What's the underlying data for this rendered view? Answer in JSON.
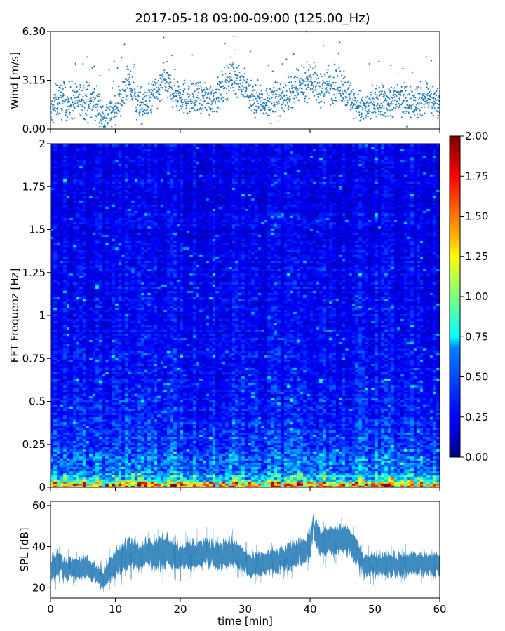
{
  "figure": {
    "title": "2017-05-18 09:00-09:00 (125.00_Hz)",
    "xlabel": "time [min]"
  },
  "chart_data": [
    {
      "type": "scatter",
      "name": "wind",
      "ylabel": "Wind [m/s]",
      "xlim": [
        0,
        60
      ],
      "ylim": [
        0,
        6.3
      ],
      "yticks": [
        0.0,
        3.15,
        6.3
      ],
      "ytick_labels": [
        "0.00",
        "3.15",
        "6.30"
      ],
      "xticks": [
        0,
        10,
        20,
        30,
        40,
        50,
        60
      ],
      "color": "#1f77b4",
      "trend": {
        "x": [
          0,
          1,
          3,
          5,
          7,
          8,
          9,
          10,
          11,
          12,
          13,
          14,
          15,
          16,
          17,
          17.5,
          18,
          20,
          22,
          24,
          26,
          27,
          28,
          29,
          30,
          31,
          33,
          35,
          37,
          38,
          39,
          40,
          41,
          42,
          43,
          45,
          46,
          47,
          48,
          49,
          50,
          52,
          54,
          55,
          56,
          57,
          58,
          60
        ],
        "mean": [
          0.9,
          1.9,
          1.7,
          1.9,
          1.8,
          0.8,
          0.9,
          1.4,
          2.0,
          3.2,
          2.0,
          1.4,
          1.7,
          2.3,
          2.6,
          3.3,
          2.8,
          2.2,
          1.8,
          2.0,
          2.1,
          3.0,
          3.5,
          3.2,
          2.6,
          1.9,
          1.7,
          1.9,
          2.2,
          2.4,
          2.8,
          3.4,
          2.8,
          2.5,
          2.9,
          2.8,
          2.1,
          1.6,
          1.3,
          1.3,
          1.7,
          1.8,
          1.9,
          1.7,
          2.0,
          1.8,
          2.1,
          1.5
        ],
        "spread": 0.55,
        "n_points": 1800,
        "min": 0.15,
        "max": 6.3
      }
    },
    {
      "type": "heatmap",
      "name": "spectrogram",
      "ylabel": "FFT Frequenz [Hz]",
      "xlim": [
        0,
        60
      ],
      "ylim": [
        0,
        2
      ],
      "yticks": [
        0,
        0.25,
        0.5,
        0.75,
        1,
        1.25,
        1.5,
        1.75,
        2
      ],
      "ytick_labels": [
        "0",
        "0.25",
        "0.5",
        "0.75",
        "1",
        "1.25",
        "1.5",
        "1.75",
        "2"
      ],
      "xticks": [
        0,
        10,
        20,
        30,
        40,
        50,
        60
      ],
      "colormap": "jet",
      "vmin": 0,
      "vmax": 2,
      "n_time_bins": 120,
      "n_freq_bins": 160,
      "level_profile": {
        "freq": [
          0,
          0.02,
          0.04,
          0.06,
          0.1,
          0.15,
          0.25,
          0.5,
          0.75,
          1.0,
          1.5,
          2.0
        ],
        "level": [
          1.6,
          1.35,
          1.0,
          0.75,
          0.55,
          0.45,
          0.35,
          0.28,
          0.25,
          0.24,
          0.22,
          0.21
        ]
      },
      "colorbar": {
        "ticks": [
          0.0,
          0.25,
          0.5,
          0.75,
          1.0,
          1.25,
          1.5,
          1.75,
          2.0
        ],
        "tick_labels": [
          "0.00",
          "0.25",
          "0.50",
          "0.75",
          "1.00",
          "1.25",
          "1.50",
          "1.75",
          "2.00"
        ]
      }
    },
    {
      "type": "line",
      "name": "spl",
      "ylabel": "SPL [dB]",
      "xlim": [
        0,
        60
      ],
      "ylim": [
        15,
        62
      ],
      "yticks": [
        20,
        40,
        60
      ],
      "ytick_labels": [
        "20",
        "40",
        "60"
      ],
      "xticks": [
        0,
        10,
        20,
        30,
        40,
        50,
        60
      ],
      "xtick_labels": [
        "0",
        "10",
        "20",
        "30",
        "40",
        "50",
        "60"
      ],
      "color": "#1f77b4",
      "envelope": {
        "x": [
          0,
          1,
          2,
          3,
          5,
          7,
          8,
          9,
          10,
          11,
          12,
          14,
          15,
          16,
          17,
          18,
          19,
          20,
          22,
          24,
          26,
          28,
          29,
          30,
          31,
          33,
          35,
          37,
          38,
          39,
          40,
          40.5,
          41,
          42,
          44,
          45,
          46,
          47,
          48,
          50,
          52,
          54,
          56,
          58,
          60
        ],
        "mean": [
          27,
          32,
          30,
          29,
          30,
          27,
          25,
          28,
          32,
          34,
          37,
          36,
          38,
          36,
          37,
          39,
          36,
          35,
          36,
          37,
          36,
          37,
          35,
          33,
          30,
          32,
          33,
          35,
          37,
          38,
          41,
          50,
          45,
          42,
          43,
          44,
          43,
          38,
          32,
          31,
          32,
          31,
          32,
          31,
          32
        ],
        "half_width": [
          5,
          6,
          5,
          5,
          5,
          4,
          4,
          5,
          6,
          6,
          7,
          6,
          6,
          6,
          8,
          7,
          6,
          6,
          6,
          6,
          6,
          6,
          6,
          5,
          5,
          5,
          5,
          6,
          6,
          6,
          7,
          4,
          6,
          6,
          6,
          6,
          6,
          6,
          5,
          5,
          5,
          5,
          5,
          5,
          5
        ]
      }
    }
  ]
}
